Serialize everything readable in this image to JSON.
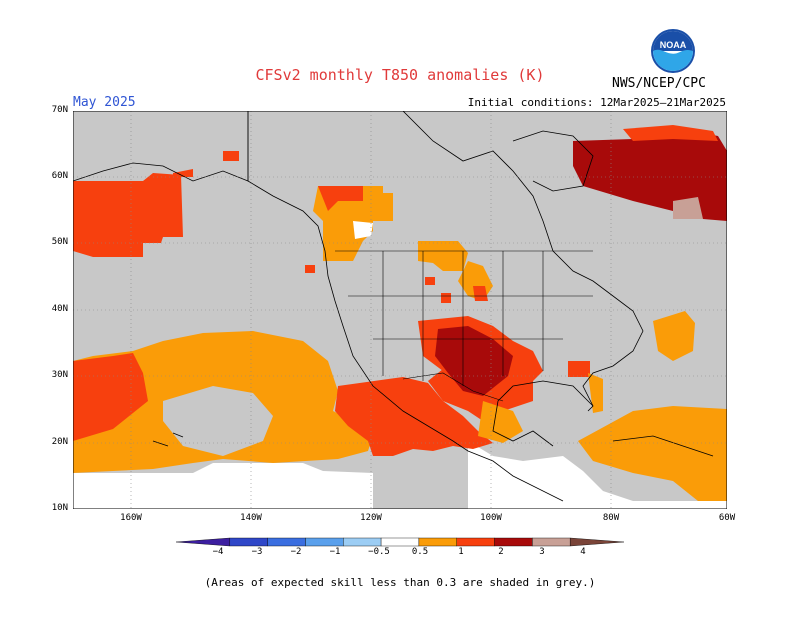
{
  "title": "CFSv2 monthly T850 anomalies (K)",
  "month": "May 2025",
  "initial_conditions": "Initial conditions: 12Mar2025–21Mar2025",
  "agency": "NWS/NCEP/CPC",
  "logo_text": "NOAA",
  "footnote": "(Areas of expected skill less than 0.3 are shaded in grey.)",
  "lat_labels": [
    "70N",
    "60N",
    "50N",
    "40N",
    "30N",
    "20N",
    "10N"
  ],
  "lon_labels": [
    "160W",
    "140W",
    "120W",
    "100W",
    "80W",
    "60W"
  ],
  "legend": {
    "labels": [
      "−4",
      "−3",
      "−2",
      "−1",
      "−0.5",
      "0.5",
      "1",
      "2",
      "3",
      "4"
    ],
    "colors": [
      "#3c1ea0",
      "#2f47c8",
      "#3a6ee0",
      "#5aa0ec",
      "#9ccdf4",
      "#ffffff",
      "#fa9c08",
      "#f7400e",
      "#a80a0a",
      "#c8a096",
      "#7a4438"
    ]
  },
  "colors": {
    "grey_mask": "#c8c8c8",
    "anom_0_5_1": "#fa9c08",
    "anom_1_2": "#f7400e",
    "anom_2_3": "#a80a0a",
    "anom_3_4": "#c8a096",
    "title": "#e03a3a",
    "month": "#2f55d4"
  },
  "icons": [
    "noaa-logo-icon"
  ]
}
